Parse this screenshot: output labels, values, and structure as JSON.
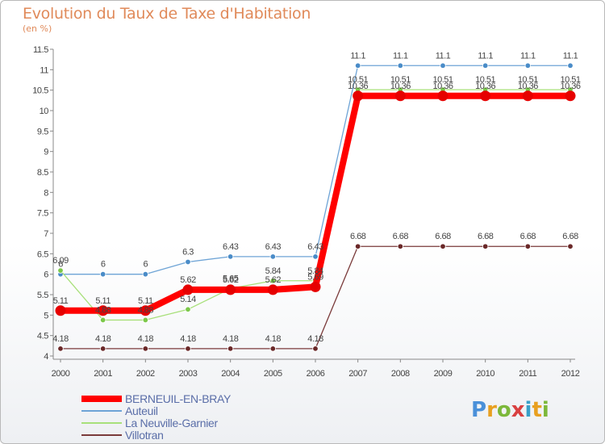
{
  "title": "Evolution du Taux de Taxe d'Habitation",
  "unit_label": "(en %)",
  "logo_text": "Proxiti",
  "logo_colors": [
    "#4a90d9",
    "#e8a020",
    "#7cb83a",
    "#d94040",
    "#3aa0c8",
    "#e8a020",
    "#7cb83a"
  ],
  "chart_data": {
    "type": "line",
    "x": [
      "2000",
      "2001",
      "2002",
      "2003",
      "2004",
      "2005",
      "2006",
      "2007",
      "2008",
      "2009",
      "2010",
      "2011",
      "2012"
    ],
    "ylim": [
      4,
      11.5
    ],
    "yticks": [
      "4",
      "4.5",
      "5",
      "5.5",
      "6",
      "6.5",
      "7",
      "7.5",
      "8",
      "8.5",
      "9",
      "9.5",
      "10",
      "10.5",
      "11",
      "11.5"
    ],
    "grid": false,
    "legend_position": "bottom-left",
    "series": [
      {
        "name": "BERNEUIL-EN-BRAY",
        "color": "#ff0000",
        "point_color": "#e60000",
        "width": 8,
        "values": [
          5.11,
          5.11,
          5.11,
          5.62,
          5.62,
          5.62,
          5.69,
          10.36,
          10.36,
          10.36,
          10.36,
          10.36,
          10.36
        ],
        "labels": [
          "5.11",
          "5.11",
          "5.11",
          "5.62",
          "5.62",
          "5.62",
          "5.69",
          "10.36",
          "10.36",
          "10.36",
          "10.36",
          "10.36",
          "10.36"
        ]
      },
      {
        "name": "Auteuil",
        "color": "#6ea4d6",
        "point_color": "#4a8cc8",
        "width": 1.3,
        "values": [
          6,
          6,
          6,
          6.3,
          6.43,
          6.43,
          6.43,
          11.1,
          11.1,
          11.1,
          11.1,
          11.1,
          11.1
        ],
        "labels": [
          "6",
          "6",
          "6",
          "6.3",
          "6.43",
          "6.43",
          "6.43",
          "11.1",
          "11.1",
          "11.1",
          "11.1",
          "11.1",
          "11.1"
        ]
      },
      {
        "name": "La Neuville-Garnier",
        "color": "#a8e07a",
        "point_color": "#7cc84a",
        "width": 1.3,
        "values": [
          6.09,
          4.88,
          4.88,
          5.14,
          5.65,
          5.84,
          5.84,
          10.51,
          10.51,
          10.51,
          10.51,
          10.51,
          10.51
        ],
        "labels": [
          "6.09",
          "4.88",
          "4.88",
          "5.14",
          "5.65",
          "5.84",
          "5.84",
          "10.51",
          "10.51",
          "10.51",
          "10.51",
          "10.51",
          "10.51"
        ]
      },
      {
        "name": "Villotran",
        "color": "#7a3a3a",
        "point_color": "#6a2828",
        "width": 1.3,
        "values": [
          4.18,
          4.18,
          4.18,
          4.18,
          4.18,
          4.18,
          4.18,
          6.68,
          6.68,
          6.68,
          6.68,
          6.68,
          6.68
        ],
        "labels": [
          "4.18",
          "4.18",
          "4.18",
          "4.18",
          "4.18",
          "4.18",
          "4.18",
          "6.68",
          "6.68",
          "6.68",
          "6.68",
          "6.68",
          "6.68"
        ]
      }
    ]
  }
}
